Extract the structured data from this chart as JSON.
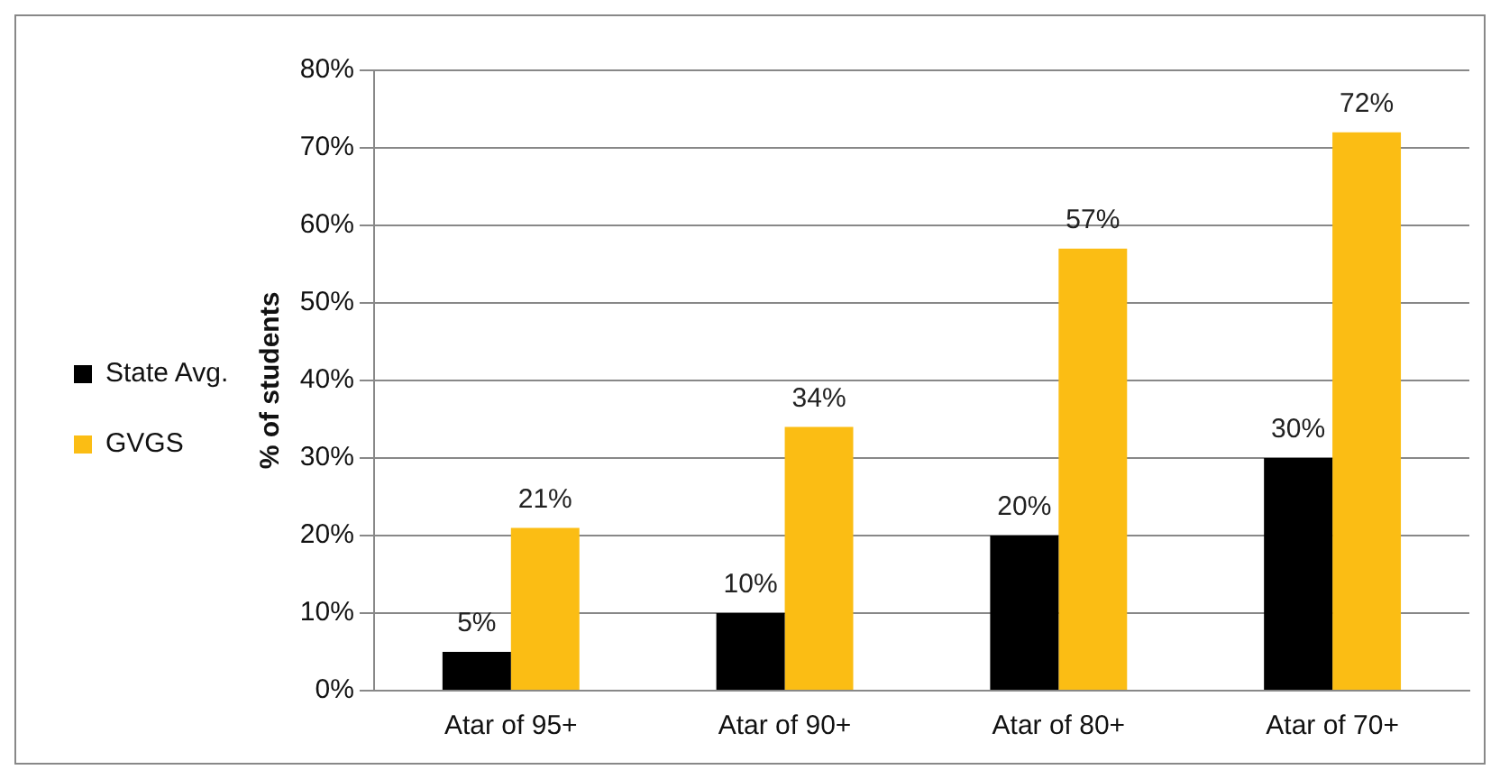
{
  "chart_data": {
    "type": "bar",
    "ylabel": "% of students",
    "categories": [
      "Atar of 95+",
      "Atar of 90+",
      "Atar of 80+",
      "Atar of 70+"
    ],
    "series": [
      {
        "name": "State Avg.",
        "color": "#000000",
        "values": [
          5,
          10,
          20,
          30
        ],
        "value_labels": [
          "5%",
          "10%",
          "20%",
          "30%"
        ]
      },
      {
        "name": "GVGS",
        "color": "#fbbd14",
        "values": [
          21,
          34,
          57,
          72
        ],
        "value_labels": [
          "21%",
          "34%",
          "57%",
          "72%"
        ]
      }
    ],
    "ylim": [
      0,
      80
    ],
    "yticks": [
      {
        "value": 0,
        "label": "0%"
      },
      {
        "value": 10,
        "label": "10%"
      },
      {
        "value": 20,
        "label": "20%"
      },
      {
        "value": 30,
        "label": "30%"
      },
      {
        "value": 40,
        "label": "40%"
      },
      {
        "value": 50,
        "label": "50%"
      },
      {
        "value": 60,
        "label": "60%"
      },
      {
        "value": 70,
        "label": "70%"
      },
      {
        "value": 80,
        "label": "80%"
      }
    ],
    "grid": "y",
    "legend": "left"
  }
}
